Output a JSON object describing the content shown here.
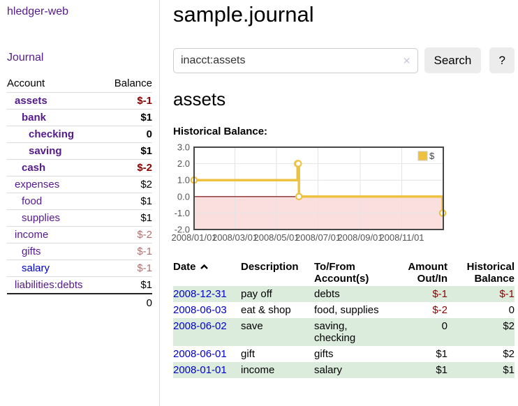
{
  "app": {
    "title": "hledger-web"
  },
  "sidebar": {
    "journal_label": "Journal",
    "accounts": {
      "col_account": "Account",
      "col_balance": "Balance",
      "rows": [
        {
          "name": "assets",
          "balance": "$-1",
          "acct_cls": "d1 bold",
          "bal_cls": "bold negs"
        },
        {
          "name": "bank",
          "balance": "$1",
          "acct_cls": "d2 bold",
          "bal_cls": "bold"
        },
        {
          "name": "checking",
          "balance": "0",
          "acct_cls": "d3 bold",
          "bal_cls": "bold"
        },
        {
          "name": "saving",
          "balance": "$1",
          "acct_cls": "d3 bold",
          "bal_cls": "bold"
        },
        {
          "name": "cash",
          "balance": "$-2",
          "acct_cls": "d2 bold",
          "bal_cls": "bold negs"
        },
        {
          "name": "expenses",
          "balance": "$2",
          "acct_cls": "d1",
          "bal_cls": ""
        },
        {
          "name": "food",
          "balance": "$1",
          "acct_cls": "d2",
          "bal_cls": ""
        },
        {
          "name": "supplies",
          "balance": "$1",
          "acct_cls": "d2",
          "bal_cls": ""
        },
        {
          "name": "income",
          "balance": "$-2",
          "acct_cls": "d1",
          "bal_cls": "negw"
        },
        {
          "name": "gifts",
          "balance": "$-1",
          "acct_cls": "d2",
          "bal_cls": "negw"
        },
        {
          "name": "salary",
          "balance": "$-1",
          "acct_cls": "d2 blue",
          "bal_cls": "negw"
        },
        {
          "name": "liabilities:debts",
          "balance": "$1",
          "acct_cls": "d1",
          "bal_cls": ""
        }
      ],
      "total": "0"
    }
  },
  "main": {
    "title": "sample.journal",
    "search": {
      "value": "inacct:assets",
      "clear_icon": "✕",
      "button_label": "Search",
      "help_label": "?"
    },
    "account_heading": "assets"
  },
  "chart_data": {
    "type": "line",
    "title": "Historical Balance:",
    "step": true,
    "x_range": [
      "2008-01-01",
      "2009-01-01"
    ],
    "y_range": [
      -2,
      3
    ],
    "xticks": [
      {
        "label": "2008/01/01",
        "date": "2008-01-01"
      },
      {
        "label": "2008/03/01",
        "date": "2008-03-01"
      },
      {
        "label": "2008/05/01",
        "date": "2008-05-01"
      },
      {
        "label": "2008/07/01",
        "date": "2008-07-01"
      },
      {
        "label": "2008/09/01",
        "date": "2008-09-01"
      },
      {
        "label": "2008/11/01",
        "date": "2008-11-01"
      }
    ],
    "yticks": [
      {
        "label": "3.0",
        "value": 3
      },
      {
        "label": "2.0",
        "value": 2
      },
      {
        "label": "1.0",
        "value": 1
      },
      {
        "label": "0.0",
        "value": 0
      },
      {
        "label": "-1.0",
        "value": -1
      },
      {
        "label": "-2.0",
        "value": -2
      }
    ],
    "series": [
      {
        "name": "$",
        "color": "#edc240",
        "points": [
          {
            "date": "2008-01-01",
            "value": 1
          },
          {
            "date": "2008-06-01",
            "value": 2
          },
          {
            "date": "2008-06-02",
            "value": 2
          },
          {
            "date": "2008-06-03",
            "value": 0
          },
          {
            "date": "2008-12-31",
            "value": -1
          }
        ]
      }
    ],
    "legend": {
      "label": "$",
      "position": "top-right"
    },
    "colors": {
      "grid": "#e4e4e4",
      "border": "#474747",
      "tick_text": "#545454",
      "negative_fill": "#fbdfdf",
      "zero_line": "#8f2a2a"
    }
  },
  "register": {
    "headers": {
      "date": "Date",
      "description": "Description",
      "accounts": "To/From Account(s)",
      "amount": "Amount Out/In",
      "balance": "Historical Balance"
    },
    "rows": [
      {
        "date": "2008-12-31",
        "description": "pay off",
        "accounts": "debts",
        "amount": "$-1",
        "balance": "$-1",
        "amount_cls": "negs",
        "balance_cls": "negs"
      },
      {
        "date": "2008-06-03",
        "description": "eat & shop",
        "accounts": "food, supplies",
        "amount": "$-2",
        "balance": "0",
        "amount_cls": "negs",
        "balance_cls": ""
      },
      {
        "date": "2008-06-02",
        "description": "save",
        "accounts": "saving, checking",
        "amount": "0",
        "balance": "$2",
        "amount_cls": "",
        "balance_cls": ""
      },
      {
        "date": "2008-06-01",
        "description": "gift",
        "accounts": "gifts",
        "amount": "$1",
        "balance": "$2",
        "amount_cls": "",
        "balance_cls": ""
      },
      {
        "date": "2008-01-01",
        "description": "income",
        "accounts": "salary",
        "amount": "$1",
        "balance": "$1",
        "amount_cls": "",
        "balance_cls": ""
      }
    ]
  }
}
